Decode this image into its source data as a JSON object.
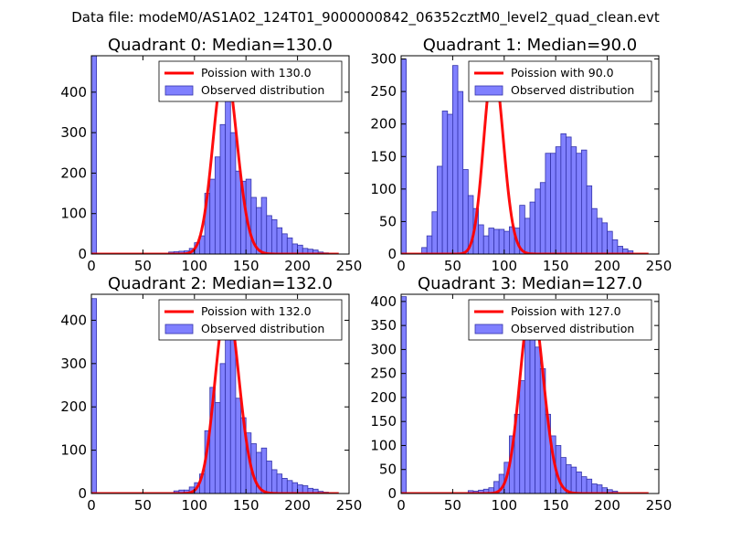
{
  "suptitle": "Data file: modeM0/AS1A02_124T01_9000000842_06352cztM0_level2_quad_clean.evt",
  "colors": {
    "bar_fill": "#8080ff",
    "bar_edge": "#3333aa",
    "fit_line": "#ff0000",
    "axes": "#000000"
  },
  "chart_data": [
    {
      "type": "bar",
      "title": "Quadrant 0: Median=130.0",
      "xlim": [
        0,
        250
      ],
      "ylim": [
        0,
        490
      ],
      "xticks": [
        0,
        50,
        100,
        150,
        200,
        250
      ],
      "yticks": [
        0,
        100,
        200,
        300,
        400
      ],
      "bin_width": 5,
      "legend": {
        "placement": "top-right",
        "line_label": "Poission with 130.0",
        "bar_label": "Observed distribution"
      },
      "poisson": {
        "lambda": 130,
        "peak": 470
      },
      "bins": [
        [
          0,
          490
        ],
        [
          75,
          5
        ],
        [
          80,
          6
        ],
        [
          85,
          7
        ],
        [
          90,
          8
        ],
        [
          95,
          14
        ],
        [
          100,
          28
        ],
        [
          105,
          45
        ],
        [
          110,
          150
        ],
        [
          115,
          185
        ],
        [
          120,
          240
        ],
        [
          125,
          320
        ],
        [
          130,
          390
        ],
        [
          135,
          300
        ],
        [
          140,
          205
        ],
        [
          145,
          180
        ],
        [
          150,
          185
        ],
        [
          155,
          140
        ],
        [
          160,
          115
        ],
        [
          165,
          140
        ],
        [
          170,
          95
        ],
        [
          175,
          85
        ],
        [
          180,
          65
        ],
        [
          185,
          50
        ],
        [
          190,
          40
        ],
        [
          195,
          25
        ],
        [
          200,
          22
        ],
        [
          205,
          14
        ],
        [
          210,
          12
        ],
        [
          215,
          10
        ],
        [
          220,
          5
        ],
        [
          225,
          3
        ]
      ]
    },
    {
      "type": "bar",
      "title": "Quadrant 1: Median=90.0",
      "xlim": [
        0,
        250
      ],
      "ylim": [
        0,
        305
      ],
      "xticks": [
        0,
        50,
        100,
        150,
        200,
        250
      ],
      "yticks": [
        0,
        50,
        100,
        150,
        200,
        250,
        300
      ],
      "bin_width": 5,
      "legend": {
        "placement": "top-right",
        "line_label": "Poission with 90.0",
        "bar_label": "Observed distribution"
      },
      "poisson": {
        "lambda": 90,
        "peak": 290
      },
      "bins": [
        [
          0,
          300
        ],
        [
          20,
          10
        ],
        [
          25,
          28
        ],
        [
          30,
          65
        ],
        [
          35,
          135
        ],
        [
          40,
          220
        ],
        [
          45,
          215
        ],
        [
          50,
          290
        ],
        [
          55,
          250
        ],
        [
          60,
          130
        ],
        [
          65,
          90
        ],
        [
          70,
          70
        ],
        [
          75,
          45
        ],
        [
          80,
          28
        ],
        [
          85,
          40
        ],
        [
          90,
          38
        ],
        [
          95,
          38
        ],
        [
          100,
          35
        ],
        [
          105,
          42
        ],
        [
          110,
          40
        ],
        [
          115,
          75
        ],
        [
          120,
          55
        ],
        [
          125,
          80
        ],
        [
          130,
          100
        ],
        [
          135,
          110
        ],
        [
          140,
          155
        ],
        [
          145,
          155
        ],
        [
          150,
          165
        ],
        [
          155,
          185
        ],
        [
          160,
          180
        ],
        [
          165,
          165
        ],
        [
          170,
          155
        ],
        [
          175,
          160
        ],
        [
          180,
          105
        ],
        [
          185,
          70
        ],
        [
          190,
          55
        ],
        [
          195,
          48
        ],
        [
          200,
          35
        ],
        [
          205,
          22
        ],
        [
          210,
          12
        ],
        [
          215,
          8
        ],
        [
          220,
          5
        ]
      ]
    },
    {
      "type": "bar",
      "title": "Quadrant 2: Median=132.0",
      "xlim": [
        0,
        250
      ],
      "ylim": [
        0,
        460
      ],
      "xticks": [
        0,
        50,
        100,
        150,
        200,
        250
      ],
      "yticks": [
        0,
        100,
        200,
        300,
        400
      ],
      "bin_width": 5,
      "legend": {
        "placement": "top-right",
        "line_label": "Poission with 132.0",
        "bar_label": "Observed distribution"
      },
      "poisson": {
        "lambda": 132,
        "peak": 440
      },
      "bins": [
        [
          0,
          450
        ],
        [
          80,
          6
        ],
        [
          85,
          8
        ],
        [
          90,
          8
        ],
        [
          95,
          15
        ],
        [
          100,
          25
        ],
        [
          105,
          45
        ],
        [
          110,
          145
        ],
        [
          115,
          245
        ],
        [
          120,
          210
        ],
        [
          125,
          300
        ],
        [
          130,
          410
        ],
        [
          135,
          355
        ],
        [
          140,
          220
        ],
        [
          145,
          175
        ],
        [
          150,
          140
        ],
        [
          155,
          115
        ],
        [
          160,
          95
        ],
        [
          165,
          105
        ],
        [
          170,
          75
        ],
        [
          175,
          55
        ],
        [
          180,
          45
        ],
        [
          185,
          35
        ],
        [
          190,
          30
        ],
        [
          195,
          25
        ],
        [
          200,
          20
        ],
        [
          205,
          18
        ],
        [
          210,
          12
        ],
        [
          215,
          10
        ],
        [
          220,
          5
        ],
        [
          225,
          3
        ]
      ]
    },
    {
      "type": "bar",
      "title": "Quadrant 3: Median=127.0",
      "xlim": [
        0,
        250
      ],
      "ylim": [
        0,
        415
      ],
      "xticks": [
        0,
        50,
        100,
        150,
        200,
        250
      ],
      "yticks": [
        0,
        50,
        100,
        150,
        200,
        250,
        300,
        350,
        400
      ],
      "bin_width": 5,
      "legend": {
        "placement": "top-right",
        "line_label": "Poission with 127.0",
        "bar_label": "Observed distribution"
      },
      "poisson": {
        "lambda": 127,
        "peak": 400
      },
      "bins": [
        [
          0,
          410
        ],
        [
          65,
          6
        ],
        [
          70,
          5
        ],
        [
          75,
          7
        ],
        [
          80,
          9
        ],
        [
          85,
          12
        ],
        [
          90,
          25
        ],
        [
          95,
          40
        ],
        [
          100,
          65
        ],
        [
          105,
          120
        ],
        [
          110,
          165
        ],
        [
          115,
          235
        ],
        [
          120,
          375
        ],
        [
          125,
          395
        ],
        [
          130,
          305
        ],
        [
          135,
          260
        ],
        [
          140,
          165
        ],
        [
          145,
          120
        ],
        [
          150,
          100
        ],
        [
          155,
          75
        ],
        [
          160,
          60
        ],
        [
          165,
          55
        ],
        [
          170,
          45
        ],
        [
          175,
          35
        ],
        [
          180,
          30
        ],
        [
          185,
          20
        ],
        [
          190,
          18
        ],
        [
          195,
          12
        ],
        [
          200,
          8
        ],
        [
          205,
          5
        ]
      ]
    }
  ]
}
